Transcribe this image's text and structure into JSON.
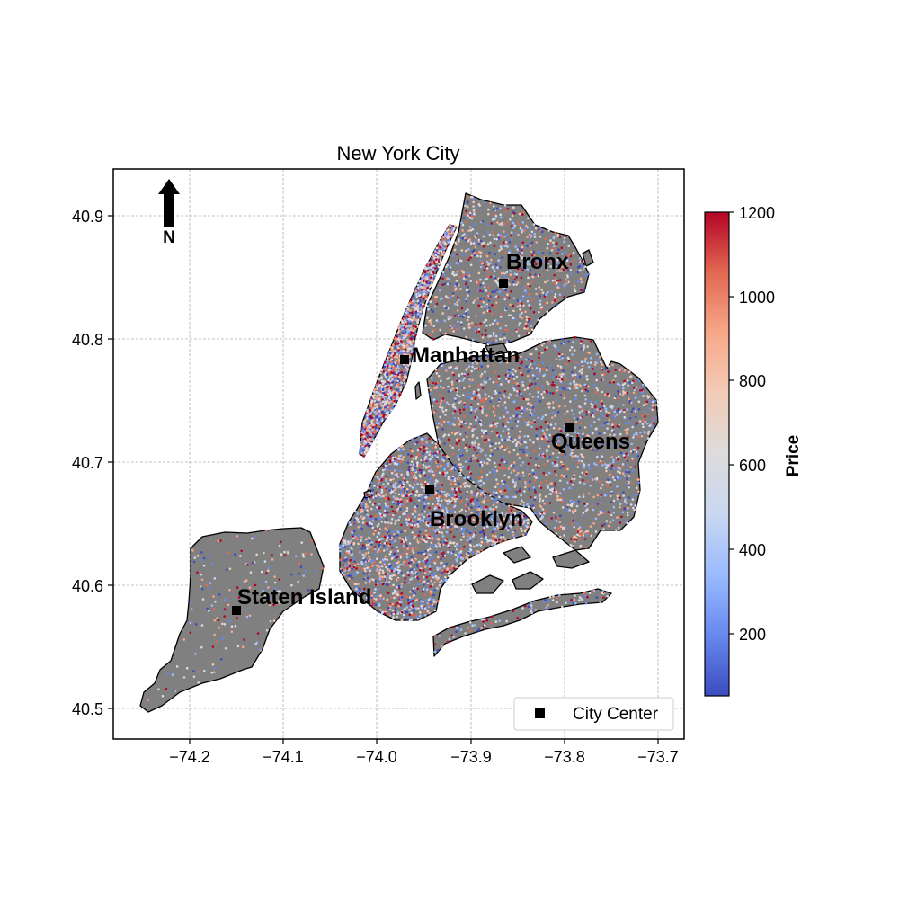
{
  "map": {
    "title": "New York City",
    "north_label": "N",
    "land_color": "#808080",
    "water_color": "#ffffff",
    "center_marker_color": "#000000",
    "grid": true,
    "extent": {
      "lon": [
        -74.285,
        -73.665
      ],
      "lat": [
        40.475,
        40.938
      ]
    }
  },
  "chart_data": {
    "type": "scatter",
    "title": "New York City",
    "xticks": [
      "−74.2",
      "−74.1",
      "−74.0",
      "−73.9",
      "−73.8",
      "−73.7"
    ],
    "xtick_values": [
      -74.2,
      -74.1,
      -74.0,
      -73.9,
      -73.8,
      -73.7
    ],
    "yticks": [
      "40.5",
      "40.6",
      "40.7",
      "40.8",
      "40.9"
    ],
    "ytick_values": [
      40.5,
      40.6,
      40.7,
      40.8,
      40.9
    ],
    "xlim": [
      -74.285,
      -73.665
    ],
    "ylim": [
      40.475,
      40.938
    ],
    "colorbar": {
      "label": "Price",
      "ticks": [
        "200",
        "400",
        "600",
        "800",
        "1000",
        "1200"
      ],
      "tick_values": [
        200,
        400,
        600,
        800,
        1000,
        1200
      ],
      "range": [
        40,
        1200
      ],
      "colormap": "coolwarm",
      "colors": [
        "#3b4cc0",
        "#6788ee",
        "#9abbff",
        "#c9d7f0",
        "#dddcdc",
        "#f2cbb7",
        "#f7a889",
        "#e26952",
        "#b40426"
      ]
    },
    "legend": {
      "entries": [
        "City Center"
      ],
      "placement": "lower right"
    },
    "city_centers": [
      {
        "name": "Bronx",
        "lon": -73.865,
        "lat": 40.845
      },
      {
        "name": "Manhattan",
        "lon": -73.971,
        "lat": 40.783
      },
      {
        "name": "Queens",
        "lon": -73.795,
        "lat": 40.728
      },
      {
        "name": "Brooklyn",
        "lon": -73.944,
        "lat": 40.678
      },
      {
        "name": "Staten Island",
        "lon": -74.15,
        "lat": 40.58
      }
    ],
    "listings_note_density": "dense scatter of listing points colored by price across boroughs"
  }
}
